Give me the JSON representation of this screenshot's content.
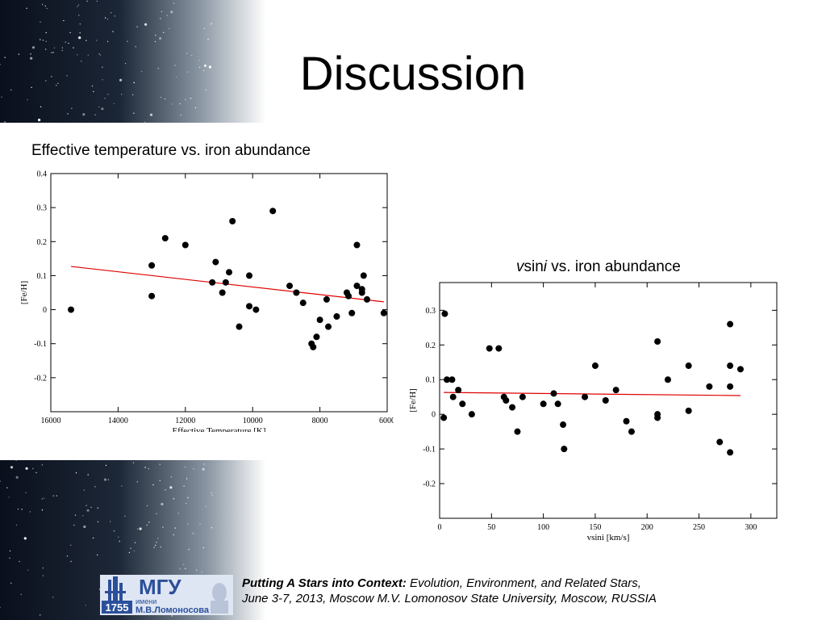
{
  "title": "Discussion",
  "captions": {
    "chart1": "Effective temperature vs. iron abundance",
    "chart2_v": "v",
    "chart2_sin": "sin",
    "chart2_i": "i",
    "chart2_rest": " vs. iron abundance"
  },
  "footer": {
    "bold": "Putting A Stars into Context:",
    "line1": " Evolution, Environment, and Related Stars,",
    "line2": "June 3-7, 2013, Moscow M.V. Lomonosov State University, Moscow, RUSSIA",
    "logo_big": "МГУ",
    "logo_small1": "имени",
    "logo_small2": "М.В.Ломоносова",
    "logo_year": "1755"
  },
  "colors": {
    "point": "#000000",
    "fit_line": "#e00000",
    "logo_blue": "#2b4f9a"
  },
  "chart_data": [
    {
      "type": "scatter",
      "title": "Effective temperature vs. iron abundance",
      "xlabel": "Effective Temperature [K]",
      "ylabel": "[Fe/H]",
      "xlim": [
        16000,
        6000
      ],
      "ylim": [
        -0.3,
        0.4
      ],
      "xticks": [
        16000,
        14000,
        12000,
        10000,
        8000,
        6000
      ],
      "yticks": [
        0.4,
        0.3,
        0.2,
        0.1,
        0,
        -0.1,
        -0.2
      ],
      "ytick_labels": [
        "0.4",
        "0.3",
        "0.2",
        "0.1",
        "0",
        "-0.1",
        "-0.2"
      ],
      "grid": false,
      "points": [
        [
          15400,
          0.0
        ],
        [
          13000,
          0.13
        ],
        [
          13000,
          0.04
        ],
        [
          12600,
          0.21
        ],
        [
          12000,
          0.19
        ],
        [
          11200,
          0.08
        ],
        [
          11100,
          0.14
        ],
        [
          10900,
          0.05
        ],
        [
          10800,
          0.08
        ],
        [
          10700,
          0.11
        ],
        [
          10600,
          0.26
        ],
        [
          10400,
          -0.05
        ],
        [
          10100,
          0.1
        ],
        [
          10100,
          0.01
        ],
        [
          9900,
          0.0
        ],
        [
          9400,
          0.29
        ],
        [
          8900,
          0.07
        ],
        [
          8700,
          0.05
        ],
        [
          8500,
          0.02
        ],
        [
          8250,
          -0.1
        ],
        [
          8200,
          -0.11
        ],
        [
          8100,
          -0.08
        ],
        [
          8000,
          -0.03
        ],
        [
          7800,
          0.03
        ],
        [
          7750,
          -0.05
        ],
        [
          7500,
          -0.02
        ],
        [
          7200,
          0.05
        ],
        [
          7150,
          0.04
        ],
        [
          7050,
          -0.01
        ],
        [
          6900,
          0.19
        ],
        [
          6900,
          0.07
        ],
        [
          6750,
          0.06
        ],
        [
          6750,
          0.05
        ],
        [
          6700,
          0.1
        ],
        [
          6600,
          0.03
        ],
        [
          6100,
          -0.01
        ]
      ],
      "fit_line": [
        [
          15400,
          0.127
        ],
        [
          6100,
          0.023
        ]
      ]
    },
    {
      "type": "scatter",
      "title": "vsini vs. iron abundance",
      "xlabel": "vsini [km/s]",
      "ylabel": "[Fe/H]",
      "xlim": [
        0,
        325
      ],
      "ylim": [
        -0.3,
        0.38
      ],
      "xticks": [
        0,
        50,
        100,
        150,
        200,
        250,
        300
      ],
      "yticks": [
        0.3,
        0.2,
        0.1,
        0,
        -0.1,
        -0.2
      ],
      "ytick_labels": [
        "0.3",
        "0.2",
        "0.1",
        "0",
        "-0.1",
        "-0.2"
      ],
      "grid": false,
      "points": [
        [
          4,
          -0.01
        ],
        [
          5,
          0.29
        ],
        [
          7,
          0.1
        ],
        [
          12,
          0.1
        ],
        [
          13,
          0.05
        ],
        [
          18,
          0.07
        ],
        [
          22,
          0.03
        ],
        [
          31,
          0.0
        ],
        [
          48,
          0.19
        ],
        [
          57,
          0.19
        ],
        [
          62,
          0.05
        ],
        [
          64,
          0.04
        ],
        [
          70,
          0.02
        ],
        [
          75,
          -0.05
        ],
        [
          80,
          0.05
        ],
        [
          100,
          0.03
        ],
        [
          110,
          0.06
        ],
        [
          114,
          0.03
        ],
        [
          119,
          -0.03
        ],
        [
          120,
          -0.1
        ],
        [
          140,
          0.05
        ],
        [
          150,
          0.14
        ],
        [
          160,
          0.04
        ],
        [
          170,
          0.07
        ],
        [
          180,
          -0.02
        ],
        [
          185,
          -0.05
        ],
        [
          210,
          0.21
        ],
        [
          210,
          0.0
        ],
        [
          210,
          -0.01
        ],
        [
          220,
          0.1
        ],
        [
          240,
          0.14
        ],
        [
          240,
          0.01
        ],
        [
          260,
          0.08
        ],
        [
          270,
          -0.08
        ],
        [
          280,
          0.26
        ],
        [
          280,
          0.14
        ],
        [
          280,
          0.08
        ],
        [
          280,
          -0.11
        ],
        [
          290,
          0.13
        ]
      ],
      "fit_line": [
        [
          4,
          0.063
        ],
        [
          290,
          0.054
        ]
      ]
    }
  ]
}
